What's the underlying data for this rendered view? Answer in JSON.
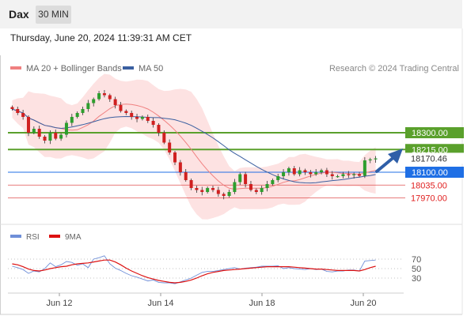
{
  "header": {
    "symbol": "Dax",
    "timeframe": "30 MIN",
    "datetime": "Thursday, June 20, 2024 11:39:31 AM CET"
  },
  "chart_data": [
    {
      "type": "candlestick",
      "legend": [
        {
          "name": "MA 20 + Bollinger Bands",
          "color": "#f08080"
        },
        {
          "name": "MA 50",
          "color": "#3a5fa0"
        }
      ],
      "credit": "Research © 2024 Trading Central",
      "ylim": [
        17860,
        18540
      ],
      "x_ticks": [
        "Jun 12",
        "Jun 14",
        "Jun 18",
        "Jun 20"
      ],
      "levels": [
        {
          "label": "18300.00",
          "value": 18300,
          "kind": "resistance",
          "color": "#5aa02c"
        },
        {
          "label": "18215.00",
          "value": 18215,
          "kind": "resistance",
          "color": "#5aa02c"
        },
        {
          "label": "18170.46",
          "value": 18170.46,
          "kind": "last",
          "color": "#333333"
        },
        {
          "label": "18100.00",
          "value": 18100,
          "kind": "pivot",
          "color": "#1f6fe5"
        },
        {
          "label": "18035.00",
          "value": 18035,
          "kind": "support",
          "color": "#e05050"
        },
        {
          "label": "17970.00",
          "value": 17970,
          "kind": "support",
          "color": "#e05050"
        }
      ],
      "close": [
        18420,
        18400,
        18380,
        18300,
        18320,
        18280,
        18260,
        18300,
        18270,
        18290,
        18350,
        18380,
        18400,
        18420,
        18450,
        18470,
        18500,
        18490,
        18470,
        18440,
        18410,
        18400,
        18380,
        18370,
        18380,
        18360,
        18340,
        18300,
        18250,
        18200,
        18150,
        18100,
        18060,
        18020,
        18010,
        18000,
        18020,
        18010,
        17990,
        17980,
        18000,
        18050,
        18090,
        18040,
        18010,
        18000,
        18020,
        18040,
        18060,
        18080,
        18100,
        18120,
        18090,
        18110,
        18100,
        18090,
        18100,
        18110,
        18090,
        18080,
        18080,
        18090,
        18085,
        18090,
        18082,
        18160,
        18165,
        18170
      ],
      "rsi": [
        {
          "name": "RSI",
          "color": "#6f8fd8",
          "ylim": [
            0,
            100
          ],
          "ticks": [
            30,
            50,
            70
          ],
          "values": [
            55,
            52,
            48,
            40,
            45,
            43,
            50,
            62,
            54,
            58,
            65,
            63,
            57,
            60,
            52,
            70,
            73,
            77,
            60,
            51,
            46,
            40,
            35,
            32,
            28,
            24,
            26,
            21,
            20,
            20,
            18,
            22,
            26,
            30,
            36,
            42,
            44,
            44,
            46,
            48,
            50,
            52,
            49,
            51,
            52,
            53,
            55,
            55,
            55,
            56,
            50,
            52,
            50,
            49,
            48,
            50,
            48,
            49,
            44,
            43,
            45,
            45,
            47,
            47,
            45,
            66,
            67,
            68
          ]
        },
        {
          "name": "9MA",
          "color": "#dd1111",
          "values": [
            60,
            58,
            54,
            49,
            46,
            45,
            47,
            50,
            52,
            54,
            55,
            58,
            60,
            61,
            62,
            64,
            66,
            68,
            68,
            64,
            58,
            51,
            45,
            40,
            35,
            31,
            28,
            25,
            23,
            21,
            20,
            21,
            23,
            26,
            30,
            35,
            39,
            42,
            44,
            46,
            47,
            48,
            49,
            50,
            51,
            52,
            53,
            54,
            54,
            54,
            54,
            54,
            53,
            52,
            51,
            50,
            49,
            49,
            48,
            47,
            46,
            46,
            46,
            46,
            45,
            48,
            52,
            55
          ]
        }
      ]
    }
  ]
}
